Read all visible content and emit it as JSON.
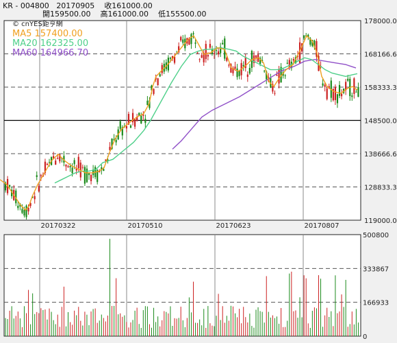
{
  "header": {
    "ticker_code": "KR - 004800",
    "date": "20170905",
    "close": "收161000.00",
    "open": "開159500.00",
    "high": "高161000.00",
    "low": "低155500.00"
  },
  "legend": {
    "source": "© cnYES鉅亨網",
    "ma5": "MA5 157400.00",
    "ma20": "MA20 162325.00",
    "ma60": "MA60 164966.70"
  },
  "colors": {
    "up": "#cc2020",
    "down": "#1a8a1a",
    "ma5": "#f0a020",
    "ma20": "#4fd08a",
    "ma60": "#9050c8",
    "plot_bg": "#ffffff",
    "page_bg": "#f0f0f0"
  },
  "chart_data": [
    {
      "type": "candlestick",
      "yticks": [
        "178000.00",
        "168166.67",
        "158333.33",
        "148500.00",
        "138666.67",
        "128833.33",
        "119000.00"
      ],
      "xticks": [
        "20170322",
        "20170510",
        "20170623",
        "20170807"
      ],
      "ylim": [
        119000,
        178000
      ],
      "reference_line": 148500,
      "ma5": [
        [
          0,
          131000
        ],
        [
          10,
          129500
        ],
        [
          20,
          126500
        ],
        [
          30,
          123500
        ],
        [
          37,
          122000
        ],
        [
          42,
          123000
        ],
        [
          47,
          126000
        ],
        [
          55,
          129500
        ],
        [
          65,
          133000
        ],
        [
          75,
          136500
        ],
        [
          85,
          138500
        ],
        [
          95,
          136500
        ],
        [
          105,
          135000
        ],
        [
          115,
          134000
        ],
        [
          125,
          133000
        ],
        [
          135,
          133000
        ],
        [
          145,
          133500
        ],
        [
          152,
          134500
        ],
        [
          160,
          139000
        ],
        [
          168,
          143000
        ],
        [
          178,
          146000
        ],
        [
          190,
          148000
        ],
        [
          200,
          149500
        ],
        [
          210,
          150500
        ],
        [
          218,
          153500
        ],
        [
          223,
          158500
        ],
        [
          228,
          161500
        ],
        [
          235,
          163000
        ],
        [
          245,
          165000
        ],
        [
          255,
          167500
        ],
        [
          265,
          170000
        ],
        [
          275,
          172500
        ],
        [
          283,
          173500
        ],
        [
          290,
          171000
        ],
        [
          298,
          168000
        ],
        [
          308,
          168500
        ],
        [
          318,
          170000
        ],
        [
          328,
          169500
        ],
        [
          338,
          164000
        ],
        [
          348,
          163000
        ],
        [
          358,
          164500
        ],
        [
          368,
          166500
        ],
        [
          378,
          167000
        ],
        [
          385,
          165500
        ],
        [
          393,
          160000
        ],
        [
          400,
          158500
        ],
        [
          408,
          161000
        ],
        [
          418,
          163500
        ],
        [
          428,
          165000
        ],
        [
          438,
          169000
        ],
        [
          448,
          173500
        ],
        [
          456,
          172000
        ],
        [
          463,
          168500
        ],
        [
          470,
          161500
        ],
        [
          478,
          158500
        ],
        [
          488,
          157000
        ],
        [
          498,
          156500
        ],
        [
          508,
          158000
        ],
        [
          515,
          158500
        ],
        [
          522,
          157500
        ]
      ],
      "ma20": [
        [
          80,
          130000
        ],
        [
          90,
          131000
        ],
        [
          100,
          132000
        ],
        [
          110,
          133000
        ],
        [
          120,
          133500
        ],
        [
          130,
          133500
        ],
        [
          140,
          134000
        ],
        [
          150,
          136000
        ],
        [
          165,
          137000
        ],
        [
          180,
          139500
        ],
        [
          195,
          142000
        ],
        [
          210,
          145500
        ],
        [
          220,
          148500
        ],
        [
          235,
          154000
        ],
        [
          250,
          159500
        ],
        [
          265,
          164500
        ],
        [
          278,
          168000
        ],
        [
          290,
          169000
        ],
        [
          300,
          169500
        ],
        [
          310,
          169500
        ],
        [
          322,
          170000
        ],
        [
          335,
          169500
        ],
        [
          345,
          169000
        ],
        [
          355,
          167500
        ],
        [
          365,
          166500
        ],
        [
          375,
          165500
        ],
        [
          385,
          164500
        ],
        [
          395,
          163500
        ],
        [
          405,
          163500
        ],
        [
          415,
          164000
        ],
        [
          425,
          165000
        ],
        [
          435,
          166000
        ],
        [
          445,
          167000
        ],
        [
          455,
          166500
        ],
        [
          465,
          165000
        ],
        [
          475,
          163500
        ],
        [
          485,
          162500
        ],
        [
          495,
          162000
        ],
        [
          505,
          161500
        ],
        [
          515,
          162000
        ],
        [
          522,
          162300
        ]
      ],
      "ma60": [
        [
          252,
          140000
        ],
        [
          265,
          142500
        ],
        [
          280,
          146000
        ],
        [
          295,
          149500
        ],
        [
          310,
          151500
        ],
        [
          330,
          153500
        ],
        [
          350,
          155500
        ],
        [
          370,
          158000
        ],
        [
          390,
          160500
        ],
        [
          410,
          163000
        ],
        [
          430,
          164500
        ],
        [
          445,
          166000
        ],
        [
          460,
          166500
        ],
        [
          475,
          166000
        ],
        [
          490,
          165500
        ],
        [
          505,
          165000
        ],
        [
          520,
          164000
        ]
      ],
      "volume": {
        "yticks": [
          "500800",
          "333867",
          "166933",
          "0"
        ],
        "ylim": [
          0,
          500800
        ]
      }
    }
  ]
}
